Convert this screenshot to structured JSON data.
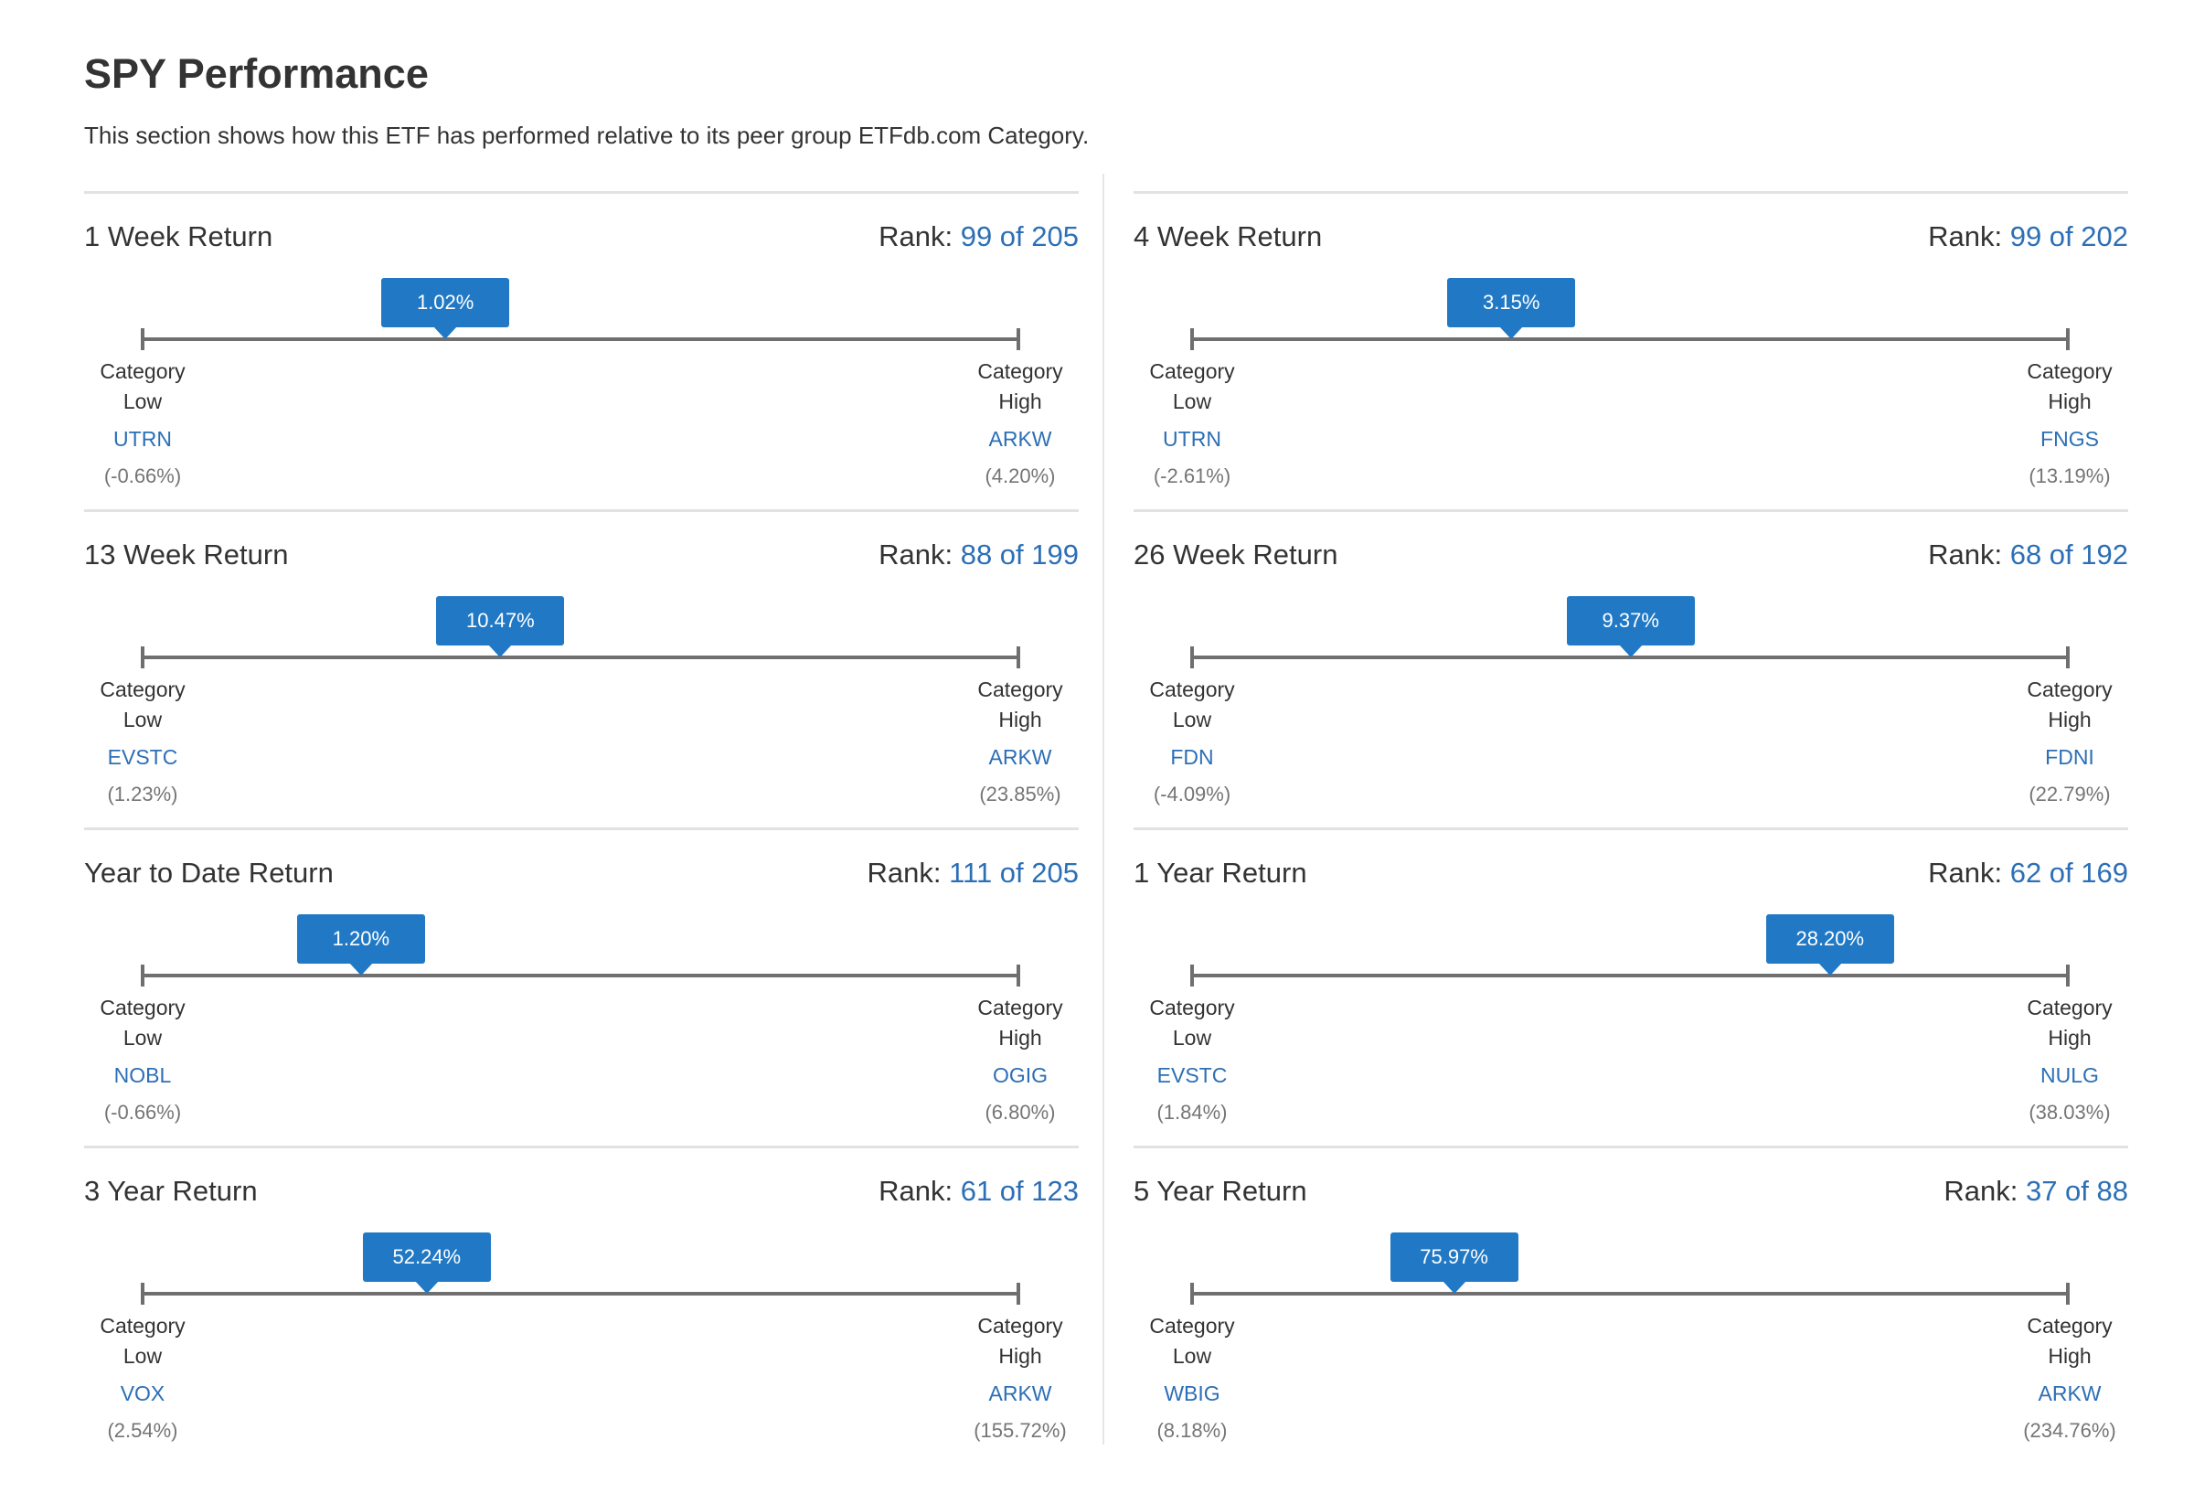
{
  "page": {
    "title": "SPY Performance",
    "description": "This section shows how this ETF has performed relative to its peer group ETFdb.com Category."
  },
  "labels": {
    "rank_prefix": "Rank:",
    "category": "Category",
    "low": "Low",
    "high": "High"
  },
  "blocks": [
    {
      "title": "1 Week Return",
      "rank": "99 of 205",
      "value": "1.02%",
      "value_pct": 1.02,
      "low_ticker": "UTRN",
      "low_value": "(-0.66%)",
      "low_pct": -0.66,
      "high_ticker": "ARKW",
      "high_value": "(4.20%)",
      "high_pct": 4.2
    },
    {
      "title": "4 Week Return",
      "rank": "99 of 202",
      "value": "3.15%",
      "value_pct": 3.15,
      "low_ticker": "UTRN",
      "low_value": "(-2.61%)",
      "low_pct": -2.61,
      "high_ticker": "FNGS",
      "high_value": "(13.19%)",
      "high_pct": 13.19
    },
    {
      "title": "13 Week Return",
      "rank": "88 of 199",
      "value": "10.47%",
      "value_pct": 10.47,
      "low_ticker": "EVSTC",
      "low_value": "(1.23%)",
      "low_pct": 1.23,
      "high_ticker": "ARKW",
      "high_value": "(23.85%)",
      "high_pct": 23.85
    },
    {
      "title": "26 Week Return",
      "rank": "68 of 192",
      "value": "9.37%",
      "value_pct": 9.37,
      "low_ticker": "FDN",
      "low_value": "(-4.09%)",
      "low_pct": -4.09,
      "high_ticker": "FDNI",
      "high_value": "(22.79%)",
      "high_pct": 22.79
    },
    {
      "title": "Year to Date Return",
      "rank": "111 of 205",
      "value": "1.20%",
      "value_pct": 1.2,
      "low_ticker": "NOBL",
      "low_value": "(-0.66%)",
      "low_pct": -0.66,
      "high_ticker": "OGIG",
      "high_value": "(6.80%)",
      "high_pct": 6.8
    },
    {
      "title": "1 Year Return",
      "rank": "62 of 169",
      "value": "28.20%",
      "value_pct": 28.2,
      "low_ticker": "EVSTC",
      "low_value": "(1.84%)",
      "low_pct": 1.84,
      "high_ticker": "NULG",
      "high_value": "(38.03%)",
      "high_pct": 38.03
    },
    {
      "title": "3 Year Return",
      "rank": "61 of 123",
      "value": "52.24%",
      "value_pct": 52.24,
      "low_ticker": "VOX",
      "low_value": "(2.54%)",
      "low_pct": 2.54,
      "high_ticker": "ARKW",
      "high_value": "(155.72%)",
      "high_pct": 155.72
    },
    {
      "title": "5 Year Return",
      "rank": "37 of 88",
      "value": "75.97%",
      "value_pct": 75.97,
      "low_ticker": "WBIG",
      "low_value": "(8.18%)",
      "low_pct": 8.18,
      "high_ticker": "ARKW",
      "high_value": "(234.76%)",
      "high_pct": 234.76
    }
  ],
  "colors": {
    "accent": "#2179c5",
    "link": "#2c6fb6",
    "axis": "#6f6f6f",
    "divider": "#e2e2e2",
    "muted_text": "#757575"
  }
}
